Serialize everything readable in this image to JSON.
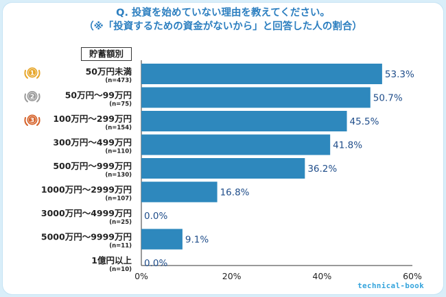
{
  "title": {
    "line1": "Q. 投資を始めていない理由を教えてください。",
    "line2": "（※「投資するための資金がないから」と回答した人の割合）"
  },
  "badge": "貯蓄額別",
  "footer": {
    "brand": "technical-book"
  },
  "colors": {
    "bar": "#2e88bd",
    "value_text": "#1f4d8a",
    "title": "#2d7fc0",
    "gold": "#e7a72c",
    "silver": "#9a9a9a",
    "bronze": "#d5622a"
  },
  "rank_icons": [
    "gold-medal-icon",
    "silver-medal-icon",
    "bronze-medal-icon"
  ],
  "rank_numbers": [
    "1",
    "2",
    "3"
  ],
  "chart_data": {
    "type": "bar",
    "orientation": "horizontal",
    "categories": [
      "50万円未満",
      "50万円～99万円",
      "100万円～299万円",
      "300万円～499万円",
      "500万円～999万円",
      "1000万円～2999万円",
      "3000万円～4999万円",
      "5000万円～9999万円",
      "1億円以上"
    ],
    "sample_sizes": [
      "(n=473)",
      "(n=75)",
      "(n=154)",
      "(n=110)",
      "(n=130)",
      "(n=107)",
      "(n=25)",
      "(n=11)",
      "(n=10)"
    ],
    "values": [
      53.3,
      50.7,
      45.5,
      41.8,
      36.2,
      16.8,
      0.0,
      9.1,
      0.0
    ],
    "value_labels": [
      "53.3%",
      "50.7%",
      "45.5%",
      "41.8%",
      "36.2%",
      "16.8%",
      "0.0%",
      "9.1%",
      "0.0%"
    ],
    "xlim": [
      0,
      60
    ],
    "xticks": [
      "0%",
      "20%",
      "40%",
      "60%"
    ],
    "grid": false,
    "xlabel": "",
    "ylabel": ""
  }
}
